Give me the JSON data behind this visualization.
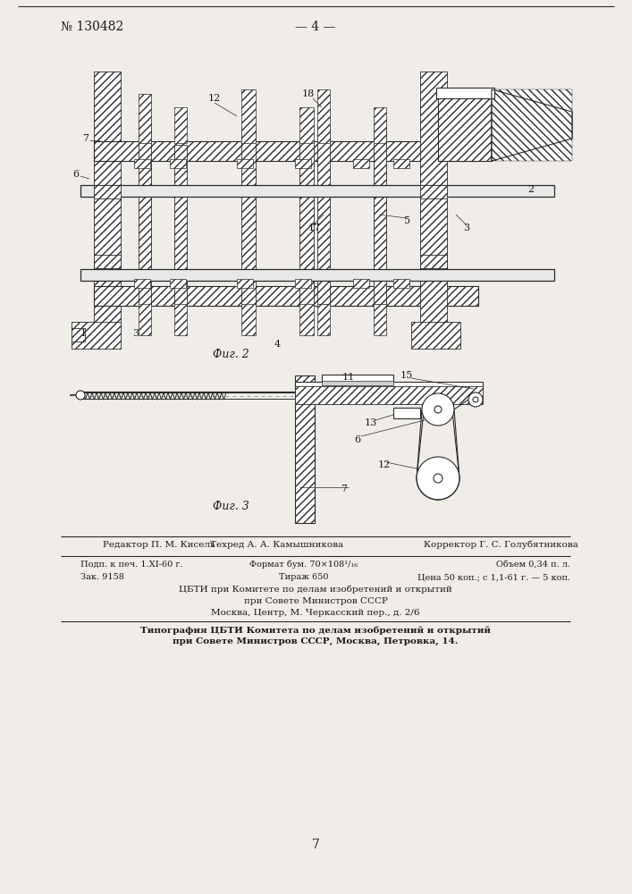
{
  "page_number_left": "№ 130482",
  "page_number_center": "— 4 —",
  "fig2_label": "Фиг. 2",
  "fig3_label": "Фиг. 3",
  "footer_page": "7",
  "editor_line1": "Редактор П. М. Кисель",
  "editor_line2": "Техред А. А. Камышникова",
  "editor_line3": "Корректор Г. С. Голубятникова",
  "line1_col1": "Подп. к печ. 1.ХІ-60 г.",
  "line1_col2": "Формат бум. 70×108¹/₁₆",
  "line1_col3": "Объем 0,34 п. л.",
  "line2_col1": "Зак. 9158",
  "line2_col2": "Тираж 650",
  "line2_col3": "Цена 50 коп.; с 1,1-61 г. — 5 коп.",
  "cbti_line1": "ЦБТИ при Комитете по делам изобретений и открытий",
  "cbti_line2": "при Совете Министров СССР",
  "cbti_line3": "Москва, Центр, М. Черкасский пер., д. 2/6",
  "typography_line1": "Типография ЦБТИ Комитета по делам изобретений и открытий",
  "typography_line2": "при Совете Министров СССР, Москва, Петровка, 14.",
  "bg_color": "#f0ede8",
  "line_color": "#2a2a2a",
  "text_color": "#1a1a1a"
}
